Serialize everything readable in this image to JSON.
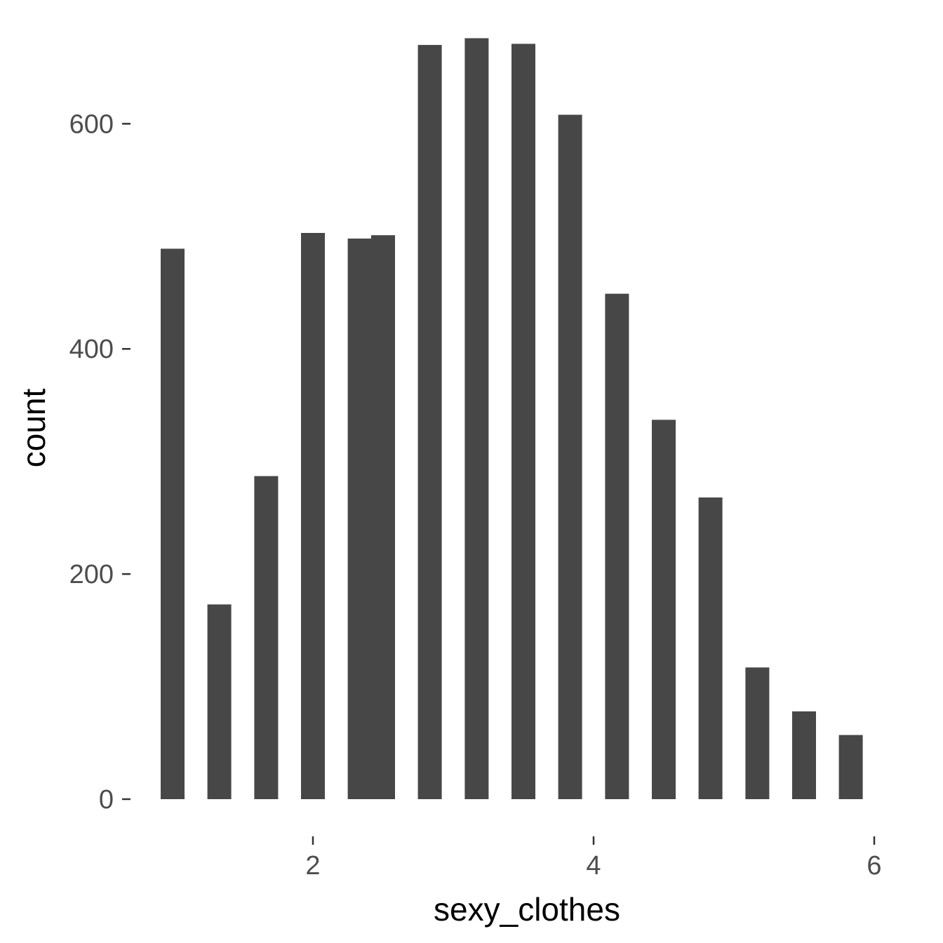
{
  "chart_data": {
    "type": "bar",
    "title": "",
    "xlabel": "sexy_clothes",
    "ylabel": "count",
    "x": [
      1.0,
      1.333,
      1.667,
      2.0,
      2.333,
      2.5,
      2.833,
      3.167,
      3.5,
      3.833,
      4.167,
      4.5,
      4.833,
      5.167,
      5.5,
      5.833
    ],
    "values": [
      489,
      173,
      287,
      503,
      498,
      501,
      670,
      676,
      671,
      608,
      449,
      337,
      268,
      117,
      78,
      57
    ],
    "bar_width": 0.17,
    "xlim": [
      0.72,
      6.22
    ],
    "ylim": [
      0,
      685
    ],
    "x_ticks": [
      2,
      4,
      6
    ],
    "y_ticks": [
      0,
      200,
      400,
      600
    ],
    "x_tick_labels": [
      "2",
      "4",
      "6"
    ],
    "y_tick_labels": [
      "0",
      "200",
      "400",
      "600"
    ],
    "grid": false,
    "legend": "none",
    "bar_color": "#474747",
    "tick_color": "#333333"
  }
}
